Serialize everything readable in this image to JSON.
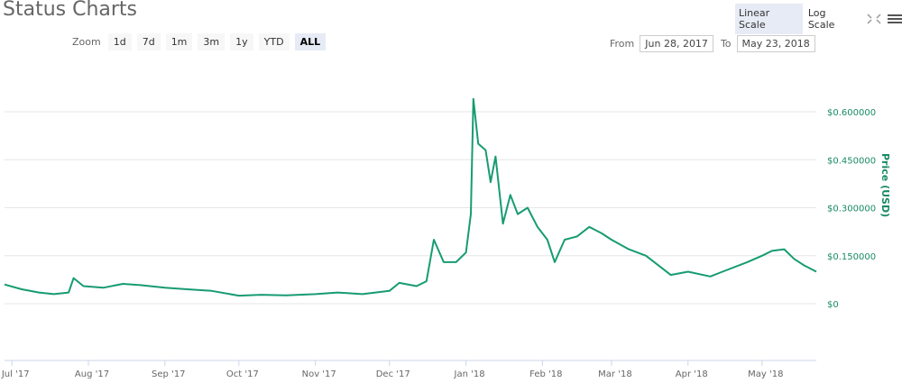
{
  "title": "Status Charts",
  "zoom": {
    "label": "Zoom",
    "buttons": [
      "1d",
      "7d",
      "1m",
      "3m",
      "1y",
      "YTD",
      "ALL"
    ],
    "active": "ALL"
  },
  "range": {
    "from_label": "From",
    "from": "Jun 28, 2017",
    "to_label": "To",
    "to": "May 23, 2018"
  },
  "scales": {
    "linear": "Linear Scale",
    "log": "Log Scale",
    "active": "Linear Scale"
  },
  "icons": [
    "fullscreen-icon",
    "menu-icon"
  ],
  "colors": {
    "line": "#179b72",
    "axis_text": "#1a8a66"
  },
  "chart_data": {
    "type": "line",
    "ylabel": "Price (USD)",
    "ylim": [
      0,
      0.6
    ],
    "yticks": [
      "$0",
      "$0.150000",
      "$0.300000",
      "$0.450000",
      "$0.600000"
    ],
    "ytick_values": [
      0,
      0.15,
      0.3,
      0.45,
      0.6
    ],
    "xticks": [
      "Jul '17",
      "Aug '17",
      "Sep '17",
      "Oct '17",
      "Nov '17",
      "Dec '17",
      "Jan '18",
      "Feb '18",
      "Mar '18",
      "Apr '18",
      "May '18"
    ],
    "xtick_dates": [
      "2017-07-01",
      "2017-08-01",
      "2017-09-01",
      "2017-10-01",
      "2017-11-01",
      "2017-12-01",
      "2018-01-01",
      "2018-02-01",
      "2018-03-01",
      "2018-04-01",
      "2018-05-01"
    ],
    "xlim": [
      "2017-06-28",
      "2018-05-23"
    ],
    "grid": true,
    "series": [
      {
        "points": [
          [
            "2017-06-28",
            0.06
          ],
          [
            "2017-07-05",
            0.045
          ],
          [
            "2017-07-12",
            0.035
          ],
          [
            "2017-07-18",
            0.03
          ],
          [
            "2017-07-24",
            0.035
          ],
          [
            "2017-07-26",
            0.08
          ],
          [
            "2017-07-30",
            0.055
          ],
          [
            "2017-08-07",
            0.05
          ],
          [
            "2017-08-15",
            0.062
          ],
          [
            "2017-08-22",
            0.058
          ],
          [
            "2017-09-01",
            0.05
          ],
          [
            "2017-09-10",
            0.045
          ],
          [
            "2017-09-20",
            0.04
          ],
          [
            "2017-10-01",
            0.025
          ],
          [
            "2017-10-10",
            0.028
          ],
          [
            "2017-10-20",
            0.026
          ],
          [
            "2017-11-01",
            0.03
          ],
          [
            "2017-11-10",
            0.035
          ],
          [
            "2017-11-20",
            0.03
          ],
          [
            "2017-12-01",
            0.04
          ],
          [
            "2017-12-05",
            0.065
          ],
          [
            "2017-12-12",
            0.055
          ],
          [
            "2017-12-16",
            0.07
          ],
          [
            "2017-12-19",
            0.2
          ],
          [
            "2017-12-23",
            0.13
          ],
          [
            "2017-12-28",
            0.13
          ],
          [
            "2018-01-01",
            0.16
          ],
          [
            "2018-01-03",
            0.28
          ],
          [
            "2018-01-04",
            0.64
          ],
          [
            "2018-01-06",
            0.5
          ],
          [
            "2018-01-09",
            0.48
          ],
          [
            "2018-01-11",
            0.38
          ],
          [
            "2018-01-13",
            0.46
          ],
          [
            "2018-01-16",
            0.25
          ],
          [
            "2018-01-19",
            0.34
          ],
          [
            "2018-01-22",
            0.28
          ],
          [
            "2018-01-26",
            0.3
          ],
          [
            "2018-01-30",
            0.24
          ],
          [
            "2018-02-03",
            0.2
          ],
          [
            "2018-02-06",
            0.13
          ],
          [
            "2018-02-10",
            0.2
          ],
          [
            "2018-02-15",
            0.21
          ],
          [
            "2018-02-20",
            0.24
          ],
          [
            "2018-02-25",
            0.22
          ],
          [
            "2018-03-01",
            0.2
          ],
          [
            "2018-03-08",
            0.17
          ],
          [
            "2018-03-15",
            0.15
          ],
          [
            "2018-03-20",
            0.12
          ],
          [
            "2018-03-25",
            0.09
          ],
          [
            "2018-04-01",
            0.1
          ],
          [
            "2018-04-10",
            0.085
          ],
          [
            "2018-04-15",
            0.1
          ],
          [
            "2018-04-25",
            0.13
          ],
          [
            "2018-05-01",
            0.15
          ],
          [
            "2018-05-05",
            0.165
          ],
          [
            "2018-05-10",
            0.17
          ],
          [
            "2018-05-14",
            0.14
          ],
          [
            "2018-05-18",
            0.12
          ],
          [
            "2018-05-23",
            0.1
          ]
        ]
      }
    ]
  }
}
